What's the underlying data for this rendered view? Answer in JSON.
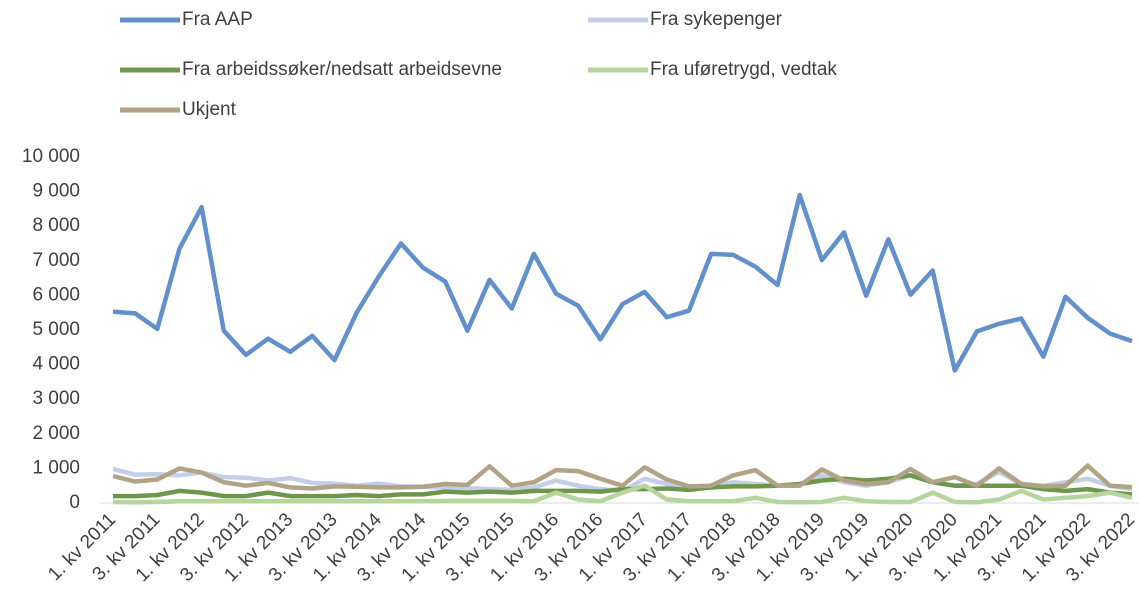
{
  "chart_data": {
    "type": "line",
    "categories": [
      "1. kv 2011",
      null,
      "3. kv 2011",
      null,
      "1. kv 2012",
      null,
      "3. kv 2012",
      null,
      "1. kv 2013",
      null,
      "3. kv 2013",
      null,
      "1. kv 2014",
      null,
      "3. kv 2014",
      null,
      "1. kv 2015",
      null,
      "3. kv 2015",
      null,
      "1. kv 2016",
      null,
      "3. kv 2016",
      null,
      "1. kv 2017",
      null,
      "3. kv 2017",
      null,
      "1. kv 2018",
      null,
      "3. kv 2018",
      null,
      "1. kv 2019",
      null,
      "3. kv 2019",
      null,
      "1. kv 2020",
      null,
      "3. kv 2020",
      null,
      "1. kv 2021",
      null,
      "3. kv 2021",
      null,
      "1. kv 2022",
      null,
      "3. kv 2022"
    ],
    "series": [
      {
        "name": "Fra AAP",
        "color": "#6190cd",
        "values": [
          5530,
          5480,
          5030,
          7350,
          8550,
          4980,
          4280,
          4750,
          4370,
          4830,
          4130,
          5500,
          6550,
          7500,
          6800,
          6400,
          4980,
          6450,
          5620,
          7200,
          6050,
          5700,
          4730,
          5750,
          6100,
          5370,
          5560,
          7200,
          7170,
          6830,
          6300,
          8900,
          7020,
          7820,
          5990,
          7620,
          6020,
          6720,
          3830,
          4960,
          5180,
          5330,
          4230,
          5960,
          5350,
          4900,
          4680
        ]
      },
      {
        "name": "Fra sykepenger",
        "color": "#c3cfe8",
        "values": [
          980,
          820,
          830,
          800,
          880,
          750,
          730,
          650,
          720,
          580,
          560,
          500,
          560,
          480,
          470,
          440,
          430,
          400,
          380,
          450,
          650,
          500,
          400,
          350,
          700,
          550,
          450,
          500,
          600,
          550,
          500,
          550,
          800,
          600,
          500,
          600,
          800,
          600,
          500,
          550,
          900,
          550,
          500,
          600,
          700,
          500,
          400
        ]
      },
      {
        "name": "Fra arbeidssøker/nedsatt arbeidsevne",
        "color": "#6f974b",
        "values": [
          200,
          200,
          230,
          350,
          300,
          200,
          200,
          300,
          200,
          200,
          200,
          230,
          200,
          250,
          250,
          330,
          300,
          330,
          300,
          350,
          350,
          350,
          330,
          400,
          400,
          420,
          380,
          450,
          480,
          480,
          500,
          550,
          650,
          700,
          650,
          700,
          800,
          600,
          500,
          500,
          500,
          500,
          400,
          350,
          400,
          300,
          250
        ]
      },
      {
        "name": "Fra uføretrygd, vedtak",
        "color": "#b6d59c",
        "values": [
          30,
          20,
          30,
          50,
          50,
          50,
          50,
          50,
          50,
          50,
          50,
          50,
          50,
          50,
          50,
          60,
          60,
          60,
          60,
          50,
          300,
          100,
          50,
          300,
          500,
          100,
          50,
          50,
          50,
          150,
          30,
          20,
          30,
          150,
          50,
          30,
          30,
          300,
          30,
          20,
          100,
          350,
          100,
          150,
          200,
          300,
          150
        ]
      },
      {
        "name": "Ukjent",
        "color": "#b1a386",
        "values": [
          780,
          620,
          680,
          1000,
          880,
          600,
          500,
          580,
          450,
          420,
          480,
          470,
          450,
          450,
          470,
          550,
          520,
          1060,
          500,
          600,
          950,
          920,
          700,
          500,
          1030,
          680,
          480,
          500,
          800,
          950,
          500,
          500,
          970,
          650,
          550,
          600,
          980,
          600,
          750,
          500,
          1000,
          550,
          480,
          500,
          1080,
          500,
          460
        ]
      }
    ],
    "ylim": [
      0,
      10000
    ],
    "yticks": [
      0,
      {
        "value": 1000,
        "label": "1 000"
      },
      {
        "value": 2000,
        "label": "2 000"
      },
      {
        "value": 3000,
        "label": "3 000"
      },
      {
        "value": 4000,
        "label": "4 000"
      },
      {
        "value": 5000,
        "label": "5 000"
      },
      {
        "value": 6000,
        "label": "6 000"
      },
      {
        "value": 7000,
        "label": "7 000"
      },
      {
        "value": 8000,
        "label": "8 000"
      },
      {
        "value": 9000,
        "label": "9 000"
      },
      {
        "value": 10000,
        "label": "10 000"
      }
    ],
    "grid": false
  }
}
